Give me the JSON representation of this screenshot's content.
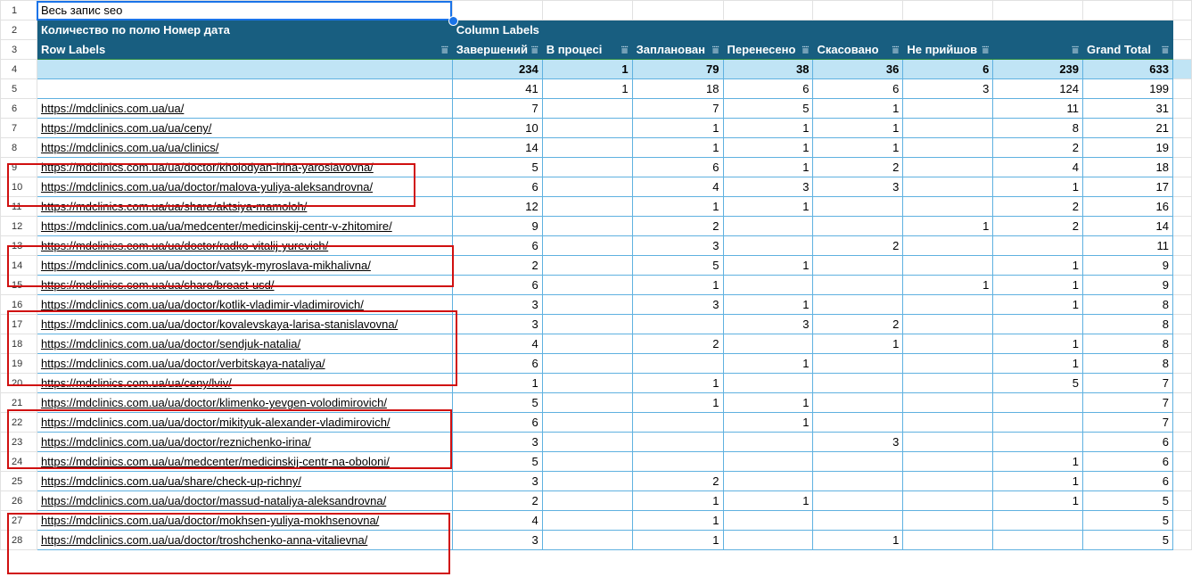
{
  "cell_a1": "Весь запис seo",
  "pivot": {
    "value_label": "Количество по полю Номер дата",
    "column_labels": "Column Labels",
    "row_labels": "Row Labels",
    "columns": [
      "Завершений",
      "В процесі",
      "Запланован",
      "Перенесено",
      "Скасовано",
      "Не прийшов",
      "",
      "Grand Total"
    ],
    "totals": [
      "234",
      "1",
      "79",
      "38",
      "36",
      "6",
      "239",
      "633"
    ],
    "rows": [
      {
        "n": "5",
        "label": "",
        "v": [
          "41",
          "1",
          "18",
          "6",
          "6",
          "3",
          "124",
          "199"
        ]
      },
      {
        "n": "6",
        "label": "https://mdclinics.com.ua/ua/",
        "v": [
          "7",
          "",
          "7",
          "5",
          "1",
          "",
          "11",
          "31"
        ]
      },
      {
        "n": "7",
        "label": "https://mdclinics.com.ua/ua/ceny/",
        "v": [
          "10",
          "",
          "1",
          "1",
          "1",
          "",
          "8",
          "21"
        ]
      },
      {
        "n": "8",
        "label": "https://mdclinics.com.ua/ua/clinics/",
        "v": [
          "14",
          "",
          "1",
          "1",
          "1",
          "",
          "2",
          "19"
        ]
      },
      {
        "n": "9",
        "label": "https://mdclinics.com.ua/ua/doctor/kholodyan-irina-yaroslavovna/",
        "v": [
          "5",
          "",
          "6",
          "1",
          "2",
          "",
          "4",
          "18"
        ]
      },
      {
        "n": "10",
        "label": "https://mdclinics.com.ua/ua/doctor/malova-yuliya-aleksandrovna/",
        "v": [
          "6",
          "",
          "4",
          "3",
          "3",
          "",
          "1",
          "17"
        ]
      },
      {
        "n": "11",
        "label": "https://mdclinics.com.ua/ua/share/aktsiya-mamoloh/",
        "v": [
          "12",
          "",
          "1",
          "1",
          "",
          "",
          "2",
          "16"
        ]
      },
      {
        "n": "12",
        "label": "https://mdclinics.com.ua/ua/medcenter/medicinskij-centr-v-zhitomire/",
        "v": [
          "9",
          "",
          "2",
          "",
          "",
          "1",
          "2",
          "14"
        ]
      },
      {
        "n": "13",
        "label": "https://mdclinics.com.ua/ua/doctor/radko-vitalij-yurevich/",
        "v": [
          "6",
          "",
          "3",
          "",
          "2",
          "",
          "",
          "11"
        ]
      },
      {
        "n": "14",
        "label": "https://mdclinics.com.ua/ua/doctor/vatsyk-myroslava-mikhalivna/",
        "v": [
          "2",
          "",
          "5",
          "1",
          "",
          "",
          "1",
          "9"
        ]
      },
      {
        "n": "15",
        "label": "https://mdclinics.com.ua/ua/share/breast-usd/",
        "v": [
          "6",
          "",
          "1",
          "",
          "",
          "1",
          "1",
          "9"
        ]
      },
      {
        "n": "16",
        "label": "https://mdclinics.com.ua/ua/doctor/kotlik-vladimir-vladimirovich/",
        "v": [
          "3",
          "",
          "3",
          "1",
          "",
          "",
          "1",
          "8"
        ]
      },
      {
        "n": "17",
        "label": "https://mdclinics.com.ua/ua/doctor/kovalevskaya-larisa-stanislavovna/",
        "v": [
          "3",
          "",
          "",
          "3",
          "2",
          "",
          "",
          "8"
        ]
      },
      {
        "n": "18",
        "label": "https://mdclinics.com.ua/ua/doctor/sendjuk-natalia/",
        "v": [
          "4",
          "",
          "2",
          "",
          "1",
          "",
          "1",
          "8"
        ]
      },
      {
        "n": "19",
        "label": "https://mdclinics.com.ua/ua/doctor/verbitskaya-nataliya/",
        "v": [
          "6",
          "",
          "",
          "1",
          "",
          "",
          "1",
          "8"
        ]
      },
      {
        "n": "20",
        "label": "https://mdclinics.com.ua/ua/ceny/lviv/",
        "v": [
          "1",
          "",
          "1",
          "",
          "",
          "",
          "5",
          "7"
        ]
      },
      {
        "n": "21",
        "label": "https://mdclinics.com.ua/ua/doctor/klimenko-yevgen-volodimirovich/",
        "v": [
          "5",
          "",
          "1",
          "1",
          "",
          "",
          "",
          "7"
        ]
      },
      {
        "n": "22",
        "label": "https://mdclinics.com.ua/ua/doctor/mikityuk-alexander-vladimirovich/",
        "v": [
          "6",
          "",
          "",
          "1",
          "",
          "",
          "",
          "7"
        ]
      },
      {
        "n": "23",
        "label": "https://mdclinics.com.ua/ua/doctor/reznichenko-irina/",
        "v": [
          "3",
          "",
          "",
          "",
          "3",
          "",
          "",
          "6"
        ]
      },
      {
        "n": "24",
        "label": "https://mdclinics.com.ua/ua/medcenter/medicinskij-centr-na-oboloni/",
        "v": [
          "5",
          "",
          "",
          "",
          "",
          "",
          "1",
          "6"
        ]
      },
      {
        "n": "25",
        "label": "https://mdclinics.com.ua/ua/share/check-up-richny/",
        "v": [
          "3",
          "",
          "2",
          "",
          "",
          "",
          "1",
          "6"
        ]
      },
      {
        "n": "26",
        "label": "https://mdclinics.com.ua/ua/doctor/massud-nataliya-aleksandrovna/",
        "v": [
          "2",
          "",
          "1",
          "1",
          "",
          "",
          "1",
          "5"
        ]
      },
      {
        "n": "27",
        "label": "https://mdclinics.com.ua/ua/doctor/mokhsen-yuliya-mokhsenovna/",
        "v": [
          "4",
          "",
          "1",
          "",
          "",
          "",
          "",
          "5"
        ]
      },
      {
        "n": "28",
        "label": "https://mdclinics.com.ua/ua/doctor/troshchenko-anna-vitalievna/",
        "v": [
          "3",
          "",
          "1",
          "",
          "1",
          "",
          "",
          "5"
        ]
      }
    ]
  },
  "highlight_color": "#d01010",
  "header_color": "#185e80",
  "total_row_color": "#c0e4f5"
}
